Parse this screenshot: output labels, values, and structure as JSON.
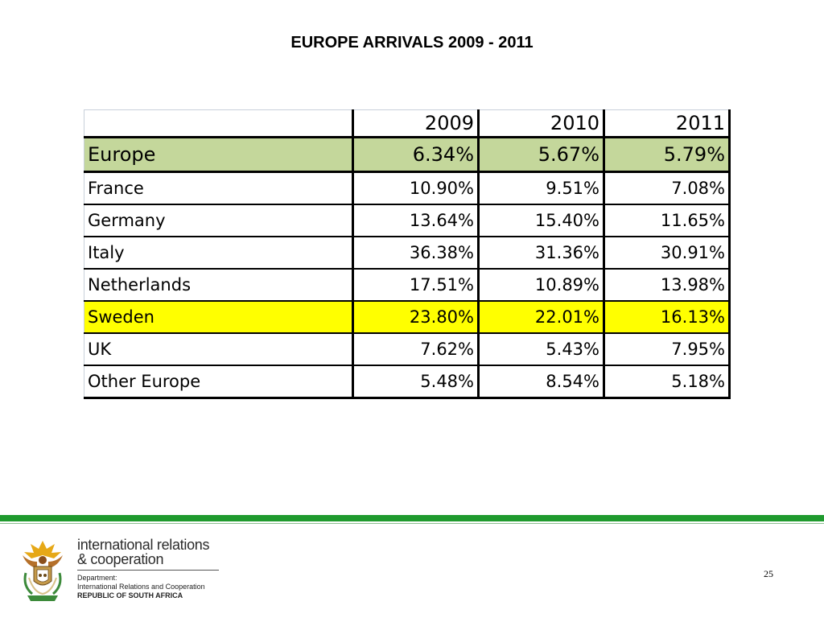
{
  "slide": {
    "title": "EUROPE ARRIVALS 2009 - 2011",
    "page_number": "25"
  },
  "table": {
    "headers": [
      "",
      "2009",
      "2010",
      "2011"
    ],
    "rows": [
      {
        "label": "Europe",
        "values": [
          "6.34%",
          "5.67%",
          "5.79%"
        ],
        "highlight": "#c4d79b"
      },
      {
        "label": "France",
        "values": [
          "10.90%",
          "9.51%",
          "7.08%"
        ]
      },
      {
        "label": "Germany",
        "values": [
          "13.64%",
          "15.40%",
          "11.65%"
        ]
      },
      {
        "label": "Italy",
        "values": [
          "36.38%",
          "31.36%",
          "30.91%"
        ]
      },
      {
        "label": "Netherlands",
        "values": [
          "17.51%",
          "10.89%",
          "13.98%"
        ]
      },
      {
        "label": "Sweden",
        "values": [
          "23.80%",
          "22.01%",
          "16.13%"
        ],
        "highlight": "#ffff00"
      },
      {
        "label": "UK",
        "values": [
          "7.62%",
          "5.43%",
          "7.95%"
        ]
      },
      {
        "label": "Other Europe",
        "values": [
          "5.48%",
          "8.54%",
          "5.18%"
        ]
      }
    ]
  },
  "footer": {
    "brand_line1": "international relations",
    "brand_line2": "& cooperation",
    "dept_line1": "Department:",
    "dept_line2": "International Relations and Cooperation",
    "dept_line3": "REPUBLIC OF SOUTH AFRICA",
    "accent_color": "#1f9a2e"
  }
}
